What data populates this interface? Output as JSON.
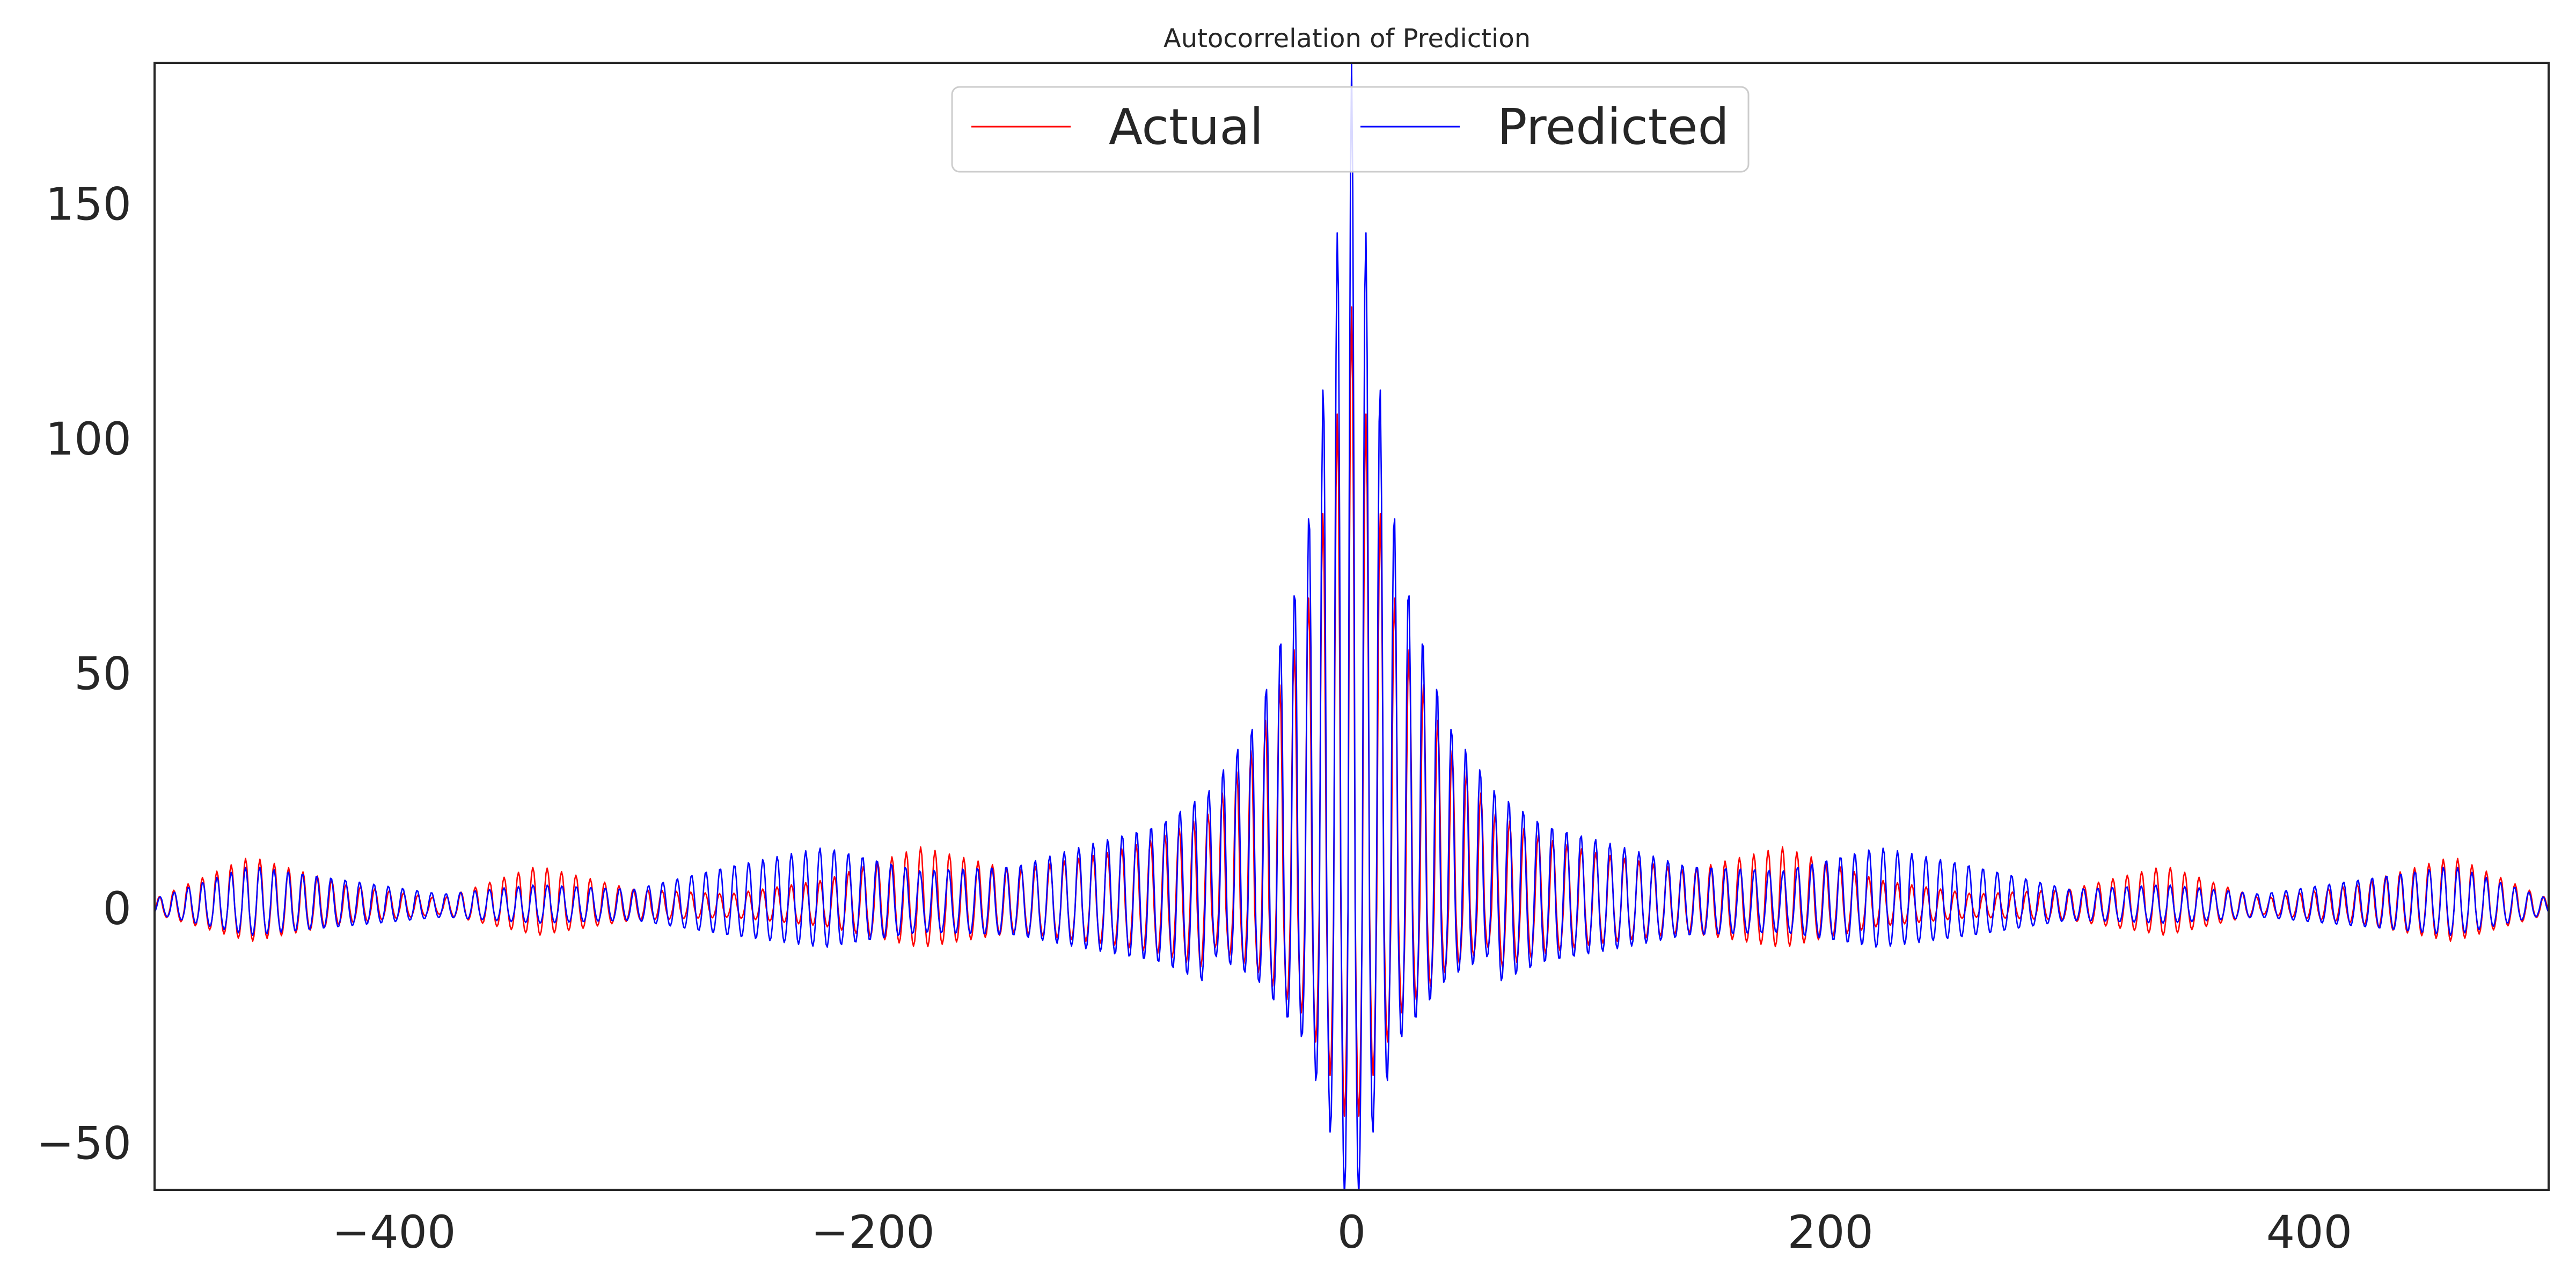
{
  "chart_data": {
    "type": "line",
    "title": "Autocorrelation of Prediction",
    "xlabel": "",
    "ylabel": "",
    "xlim": [
      -500,
      500
    ],
    "ylim": [
      -60,
      180
    ],
    "x_ticks": [
      -400,
      -200,
      0,
      200,
      400
    ],
    "x_tick_labels": [
      "−400",
      "−200",
      "0",
      "200",
      "400"
    ],
    "y_ticks": [
      -50,
      0,
      50,
      100,
      150
    ],
    "y_tick_labels": [
      "−50",
      "0",
      "50",
      "100",
      "150"
    ],
    "grid": false,
    "legend_position": "top-center",
    "oscillation_period": 6,
    "series": [
      {
        "name": "Actual",
        "color": "#ff0000",
        "description": "oscillating autocorrelation envelope (amplitude by lag)",
        "envelope": {
          "lags": [
            -500,
            -460,
            -420,
            -380,
            -340,
            -300,
            -260,
            -220,
            -180,
            -140,
            -100,
            -80,
            -60,
            -40,
            -20,
            -10,
            0,
            10,
            20,
            40,
            60,
            80,
            100,
            140,
            180,
            220,
            260,
            300,
            340,
            380,
            420,
            460,
            500
          ],
          "amplitude": [
            2,
            11,
            5,
            2,
            9,
            4,
            3,
            6,
            13,
            8,
            12,
            15,
            20,
            35,
            60,
            90,
            128,
            90,
            60,
            35,
            20,
            15,
            12,
            8,
            13,
            6,
            3,
            4,
            9,
            2,
            5,
            11,
            2
          ]
        }
      },
      {
        "name": "Predicted",
        "color": "#0000ff",
        "description": "oscillating autocorrelation envelope (amplitude by lag)",
        "envelope": {
          "lags": [
            -500,
            -460,
            -420,
            -380,
            -340,
            -300,
            -260,
            -220,
            -180,
            -140,
            -100,
            -80,
            -60,
            -40,
            -20,
            -10,
            0,
            10,
            20,
            40,
            60,
            80,
            100,
            140,
            180,
            220,
            260,
            300,
            340,
            380,
            420,
            460,
            500
          ],
          "amplitude": [
            2,
            9,
            6,
            3,
            5,
            4,
            9,
            13,
            8,
            9,
            15,
            18,
            25,
            40,
            75,
            120,
            180,
            120,
            75,
            40,
            25,
            18,
            15,
            9,
            8,
            13,
            9,
            4,
            5,
            3,
            6,
            9,
            2
          ]
        }
      }
    ]
  }
}
